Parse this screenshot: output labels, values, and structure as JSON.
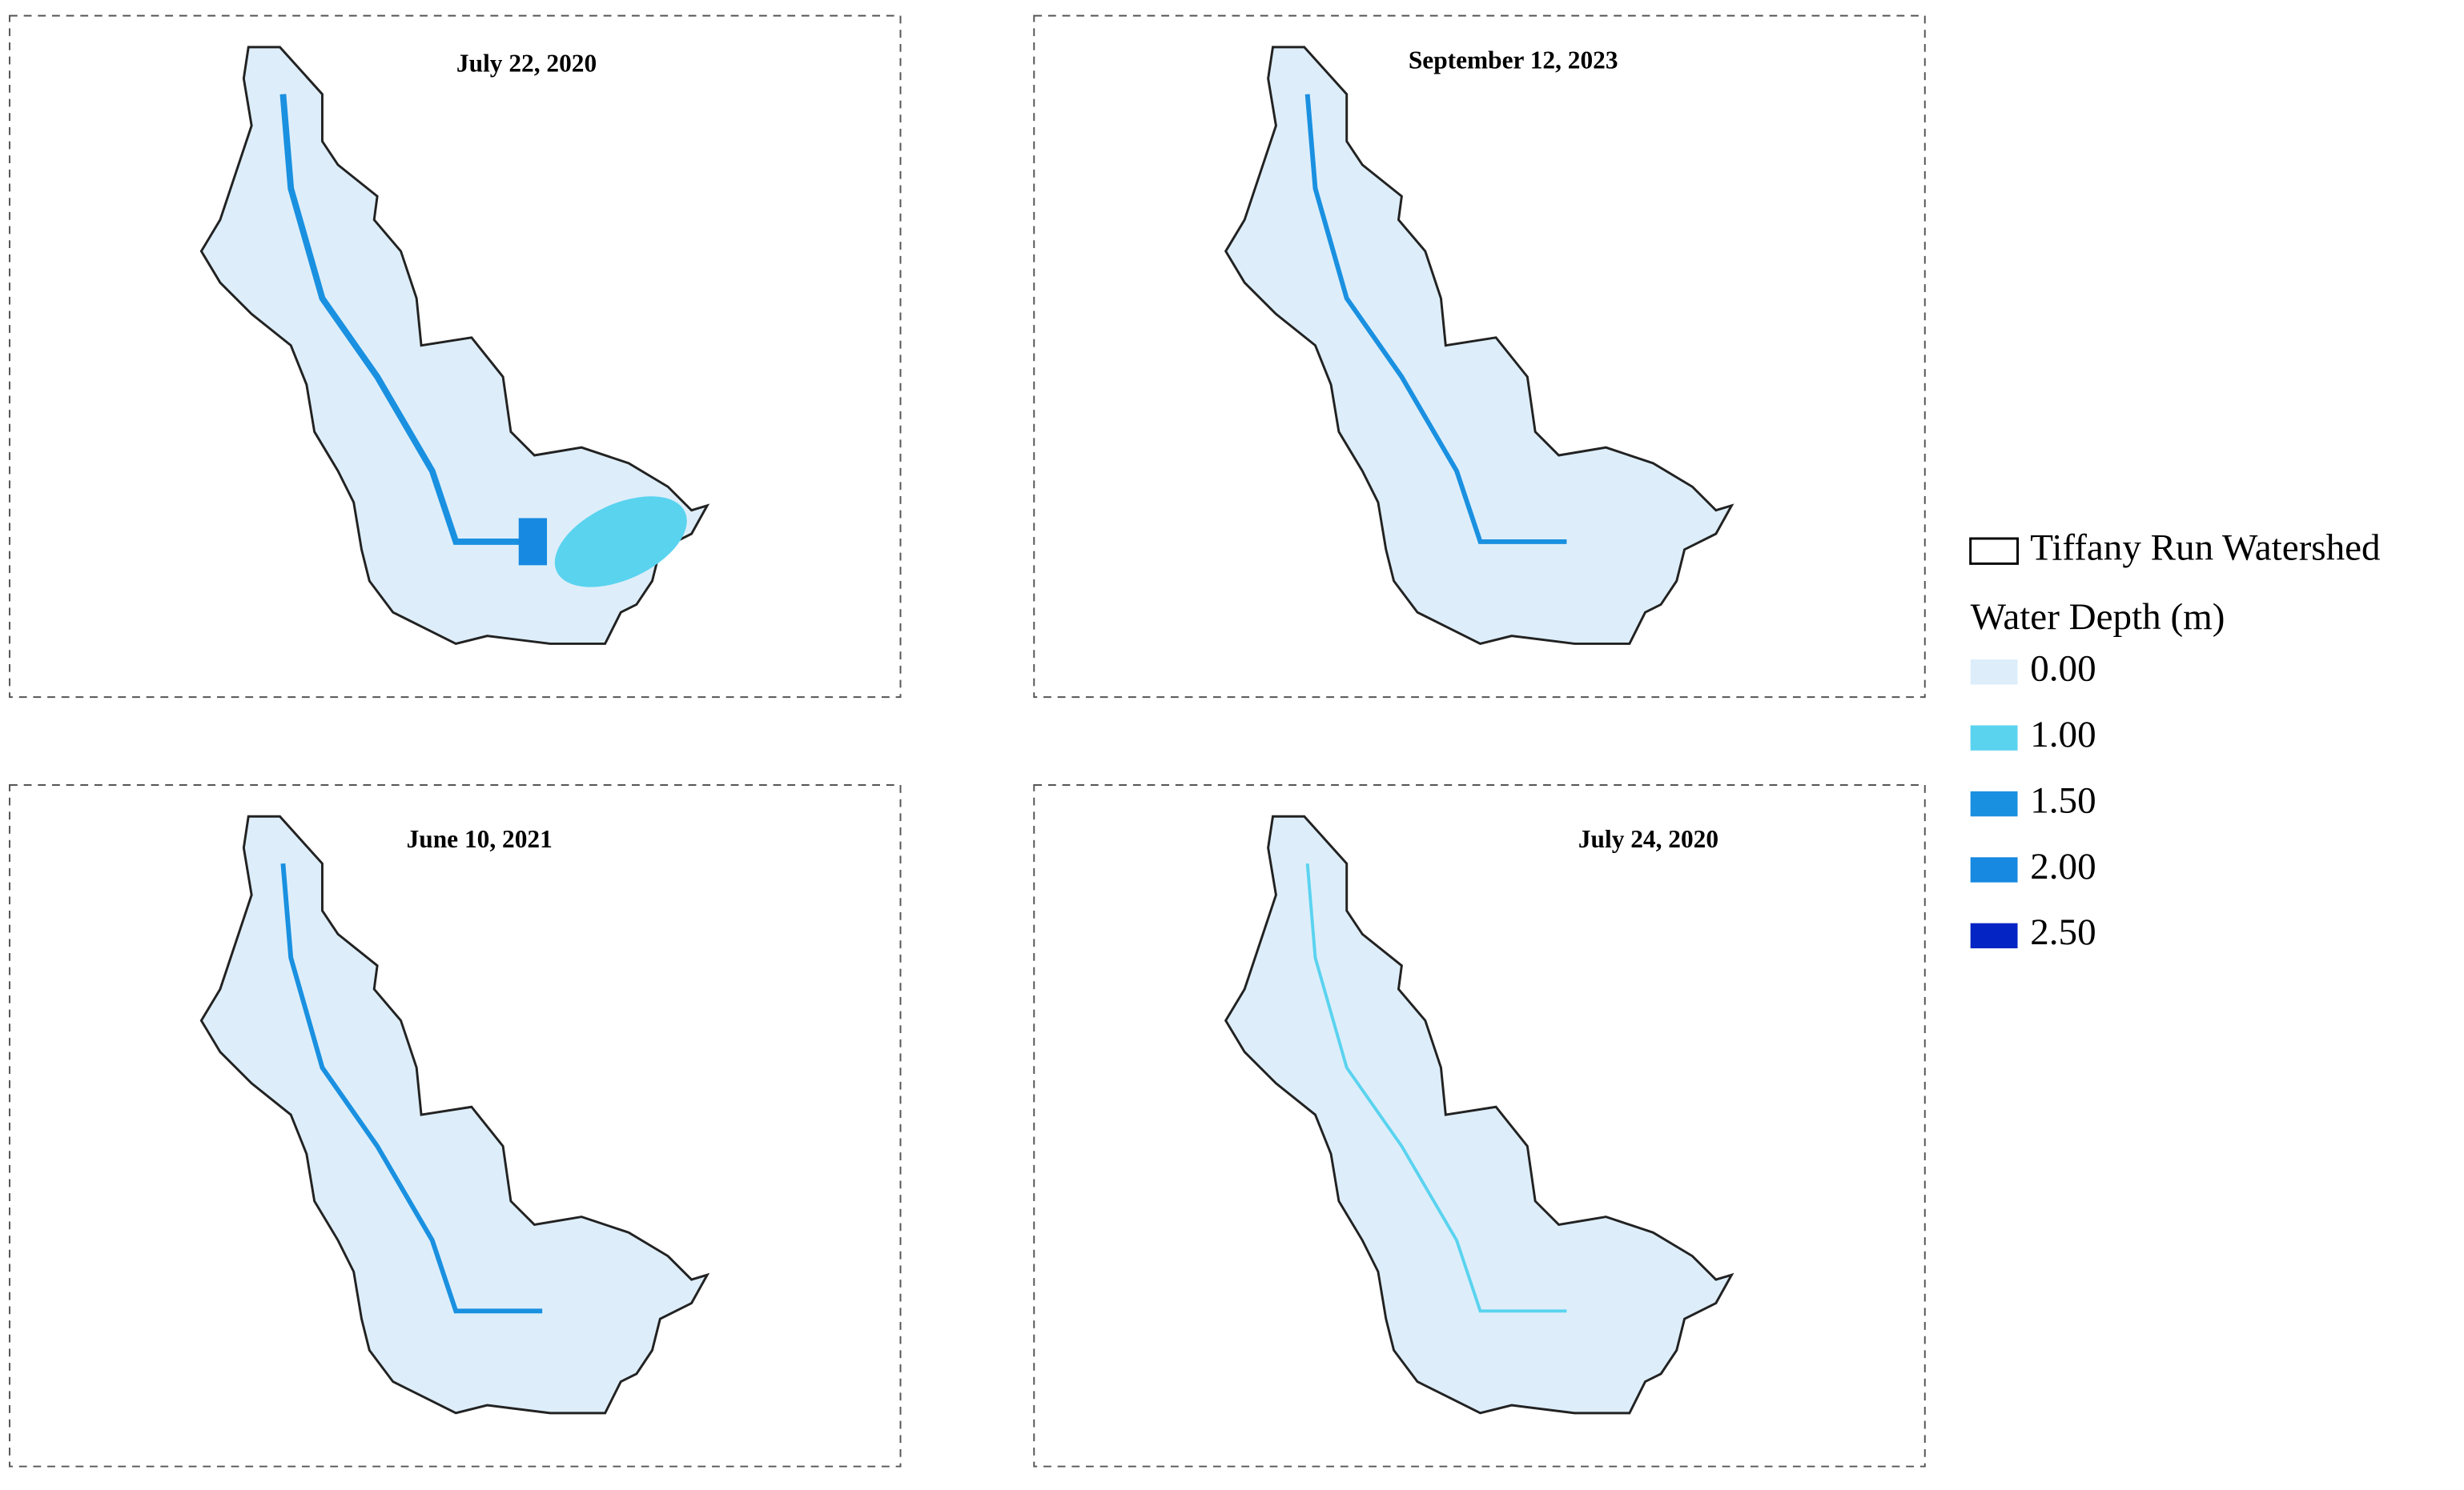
{
  "panels": [
    {
      "title": "July 22, 2020"
    },
    {
      "title": "September 12, 2023"
    },
    {
      "title": "June 10, 2021"
    },
    {
      "title": "July 24, 2020"
    }
  ],
  "legend": {
    "boundary_label": "Tiffany Run Watershed",
    "title": "Water Depth (m)",
    "entries": [
      {
        "label": "0.00",
        "color": "#ddeefa"
      },
      {
        "label": "1.00",
        "color": "#5ad3ef"
      },
      {
        "label": "1.50",
        "color": "#1a90e0"
      },
      {
        "label": "2.00",
        "color": "#1789e0"
      },
      {
        "label": "2.50",
        "color": "#0524c4"
      }
    ]
  }
}
